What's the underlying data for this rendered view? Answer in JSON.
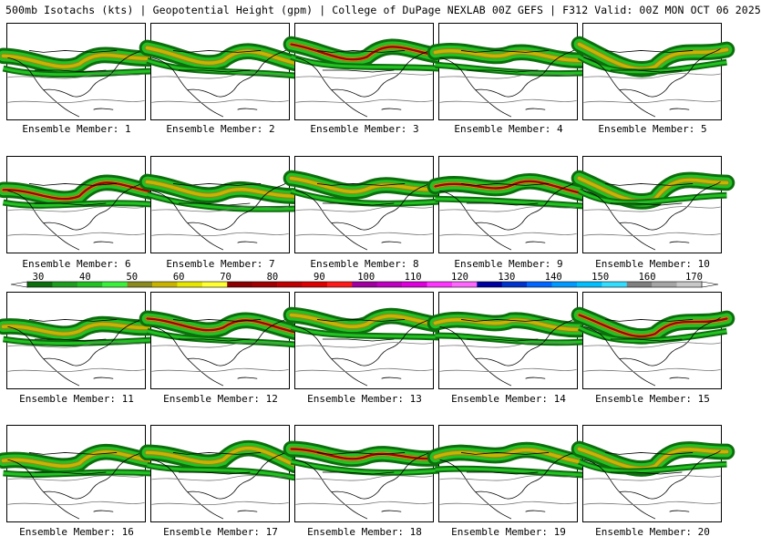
{
  "header": {
    "title": "500mb Isotachs (kts)",
    "subtitle": "Geopotential Height (gpm)",
    "source": "College of DuPage NEXLAB",
    "run_info": "00Z GEFS | F312 Valid: 00Z MON OCT 06 2025",
    "separator": "|"
  },
  "members": [
    {
      "label": "Ensemble Member: 1"
    },
    {
      "label": "Ensemble Member: 2"
    },
    {
      "label": "Ensemble Member: 3"
    },
    {
      "label": "Ensemble Member: 4"
    },
    {
      "label": "Ensemble Member: 5"
    },
    {
      "label": "Ensemble Member: 6"
    },
    {
      "label": "Ensemble Member: 7"
    },
    {
      "label": "Ensemble Member: 8"
    },
    {
      "label": "Ensemble Member: 9"
    },
    {
      "label": "Ensemble Member: 10"
    },
    {
      "label": "Ensemble Member: 11"
    },
    {
      "label": "Ensemble Member: 12"
    },
    {
      "label": "Ensemble Member: 13"
    },
    {
      "label": "Ensemble Member: 14"
    },
    {
      "label": "Ensemble Member: 15"
    },
    {
      "label": "Ensemble Member: 16"
    },
    {
      "label": "Ensemble Member: 17"
    },
    {
      "label": "Ensemble Member: 18"
    },
    {
      "label": "Ensemble Member: 19"
    },
    {
      "label": "Ensemble Member: 20"
    }
  ],
  "colorbar": {
    "tick_labels": [
      "30",
      "40",
      "50",
      "60",
      "70",
      "80",
      "90",
      "100",
      "110",
      "120",
      "130",
      "140",
      "150",
      "160",
      "170"
    ],
    "colors": [
      "#0d6e0d",
      "#1e9e1e",
      "#22c222",
      "#3bf03b",
      "#8a8a1e",
      "#c8b400",
      "#e6e600",
      "#ffff33",
      "#8b0000",
      "#a00000",
      "#c00000",
      "#dd0000",
      "#ff1a1a",
      "#a000a0",
      "#c000c0",
      "#dd00dd",
      "#ff33ff",
      "#ff66ff",
      "#0000a0",
      "#0033cc",
      "#0066ff",
      "#0099ff",
      "#00bfff",
      "#33ddff",
      "#808080",
      "#a6a6a6",
      "#c8c8c8"
    ]
  }
}
